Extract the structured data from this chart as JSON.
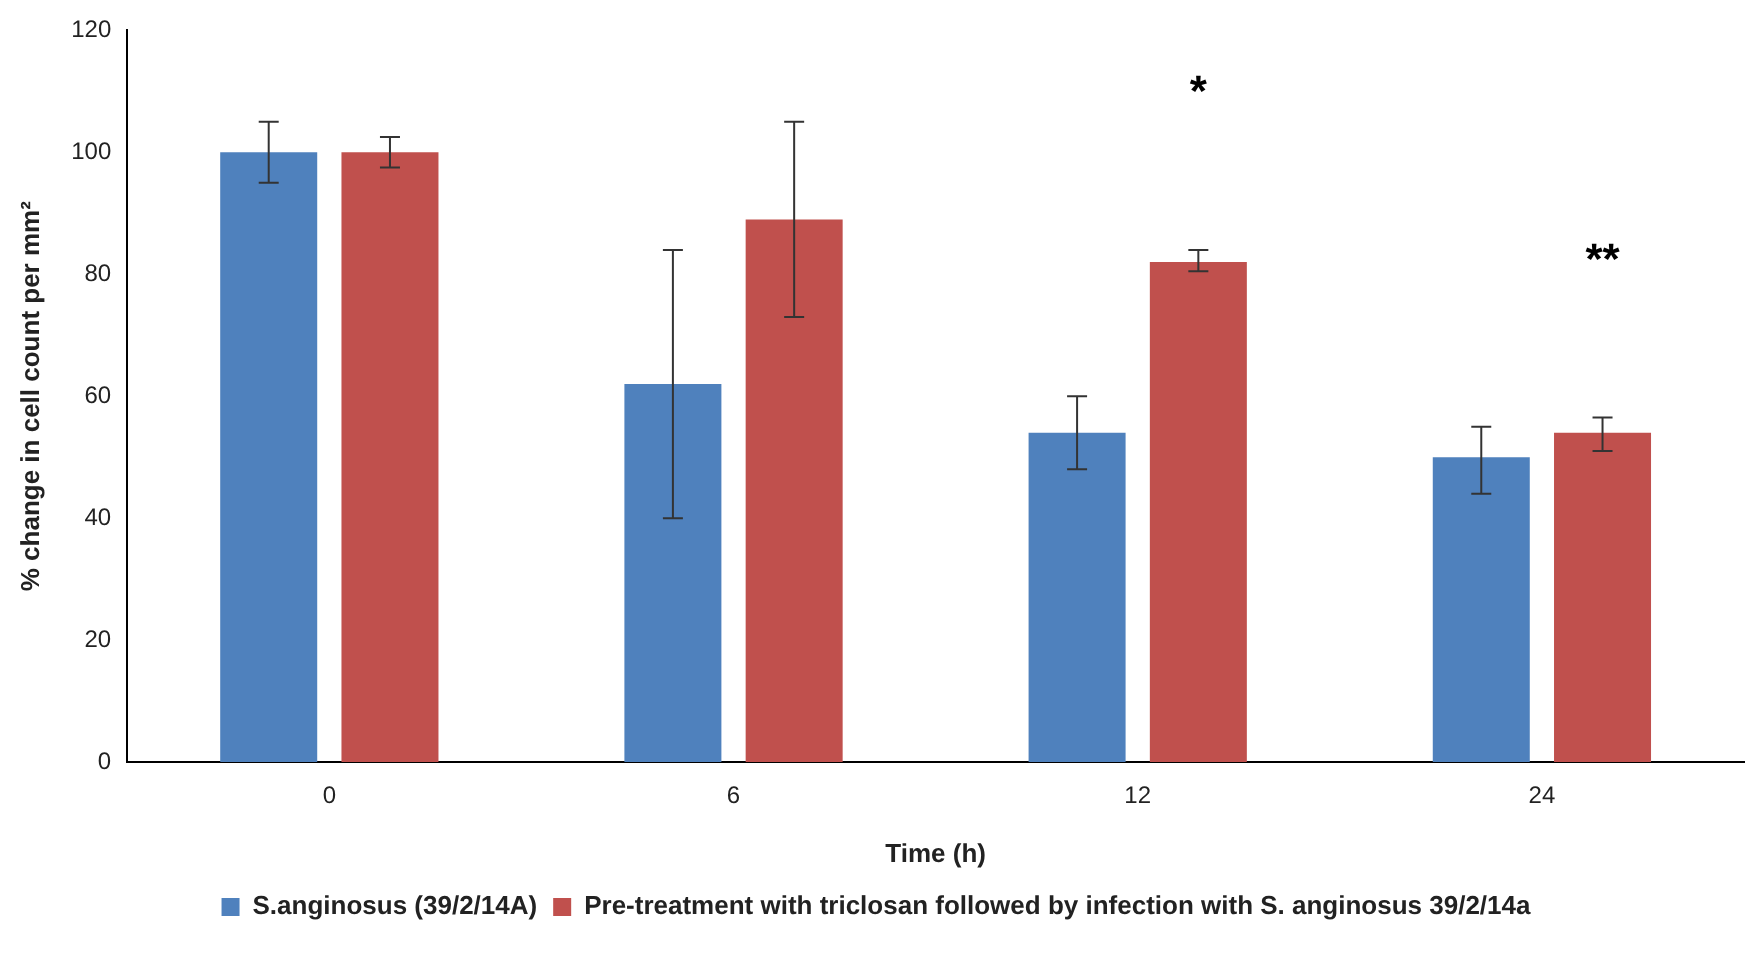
{
  "chart_data": {
    "type": "bar",
    "xlabel": "Time (h)",
    "ylabel": "% change in cell count per mm²",
    "categories": [
      "0",
      "6",
      "12",
      "24"
    ],
    "series": [
      {
        "name": "S.anginosus (39/2/14A)",
        "color": "#4f81bd",
        "values": [
          100,
          62,
          54,
          50
        ],
        "errors": [
          [
            95,
            105
          ],
          [
            40,
            84
          ],
          [
            48,
            60
          ],
          [
            44,
            55
          ]
        ]
      },
      {
        "name": "Pre-treatment with triclosan followed by infection with S. anginosus 39/2/14a",
        "color": "#c0504d",
        "values": [
          100,
          89,
          82,
          54
        ],
        "errors": [
          [
            97.5,
            102.5
          ],
          [
            73,
            105
          ],
          [
            80.5,
            84
          ],
          [
            51,
            56.5
          ]
        ]
      }
    ],
    "ylim": [
      0,
      120
    ],
    "yticks": [
      0,
      20,
      40,
      60,
      80,
      100,
      120
    ],
    "grid": false,
    "legend": "bottom",
    "annotations": [
      "*",
      "**"
    ]
  }
}
